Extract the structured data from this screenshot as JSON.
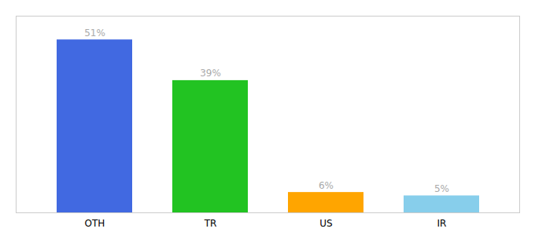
{
  "chart_data": {
    "type": "bar",
    "categories": [
      "OTH",
      "TR",
      "US",
      "IR"
    ],
    "values": [
      51,
      39,
      6,
      5
    ],
    "value_labels": [
      "51%",
      "39%",
      "6%",
      "5%"
    ],
    "colors": [
      "#4169e1",
      "#22c322",
      "#ffa500",
      "#87ceeb"
    ],
    "ylim": [
      0,
      58
    ],
    "data_labels": true,
    "tick_labels": "x",
    "grid": false
  }
}
